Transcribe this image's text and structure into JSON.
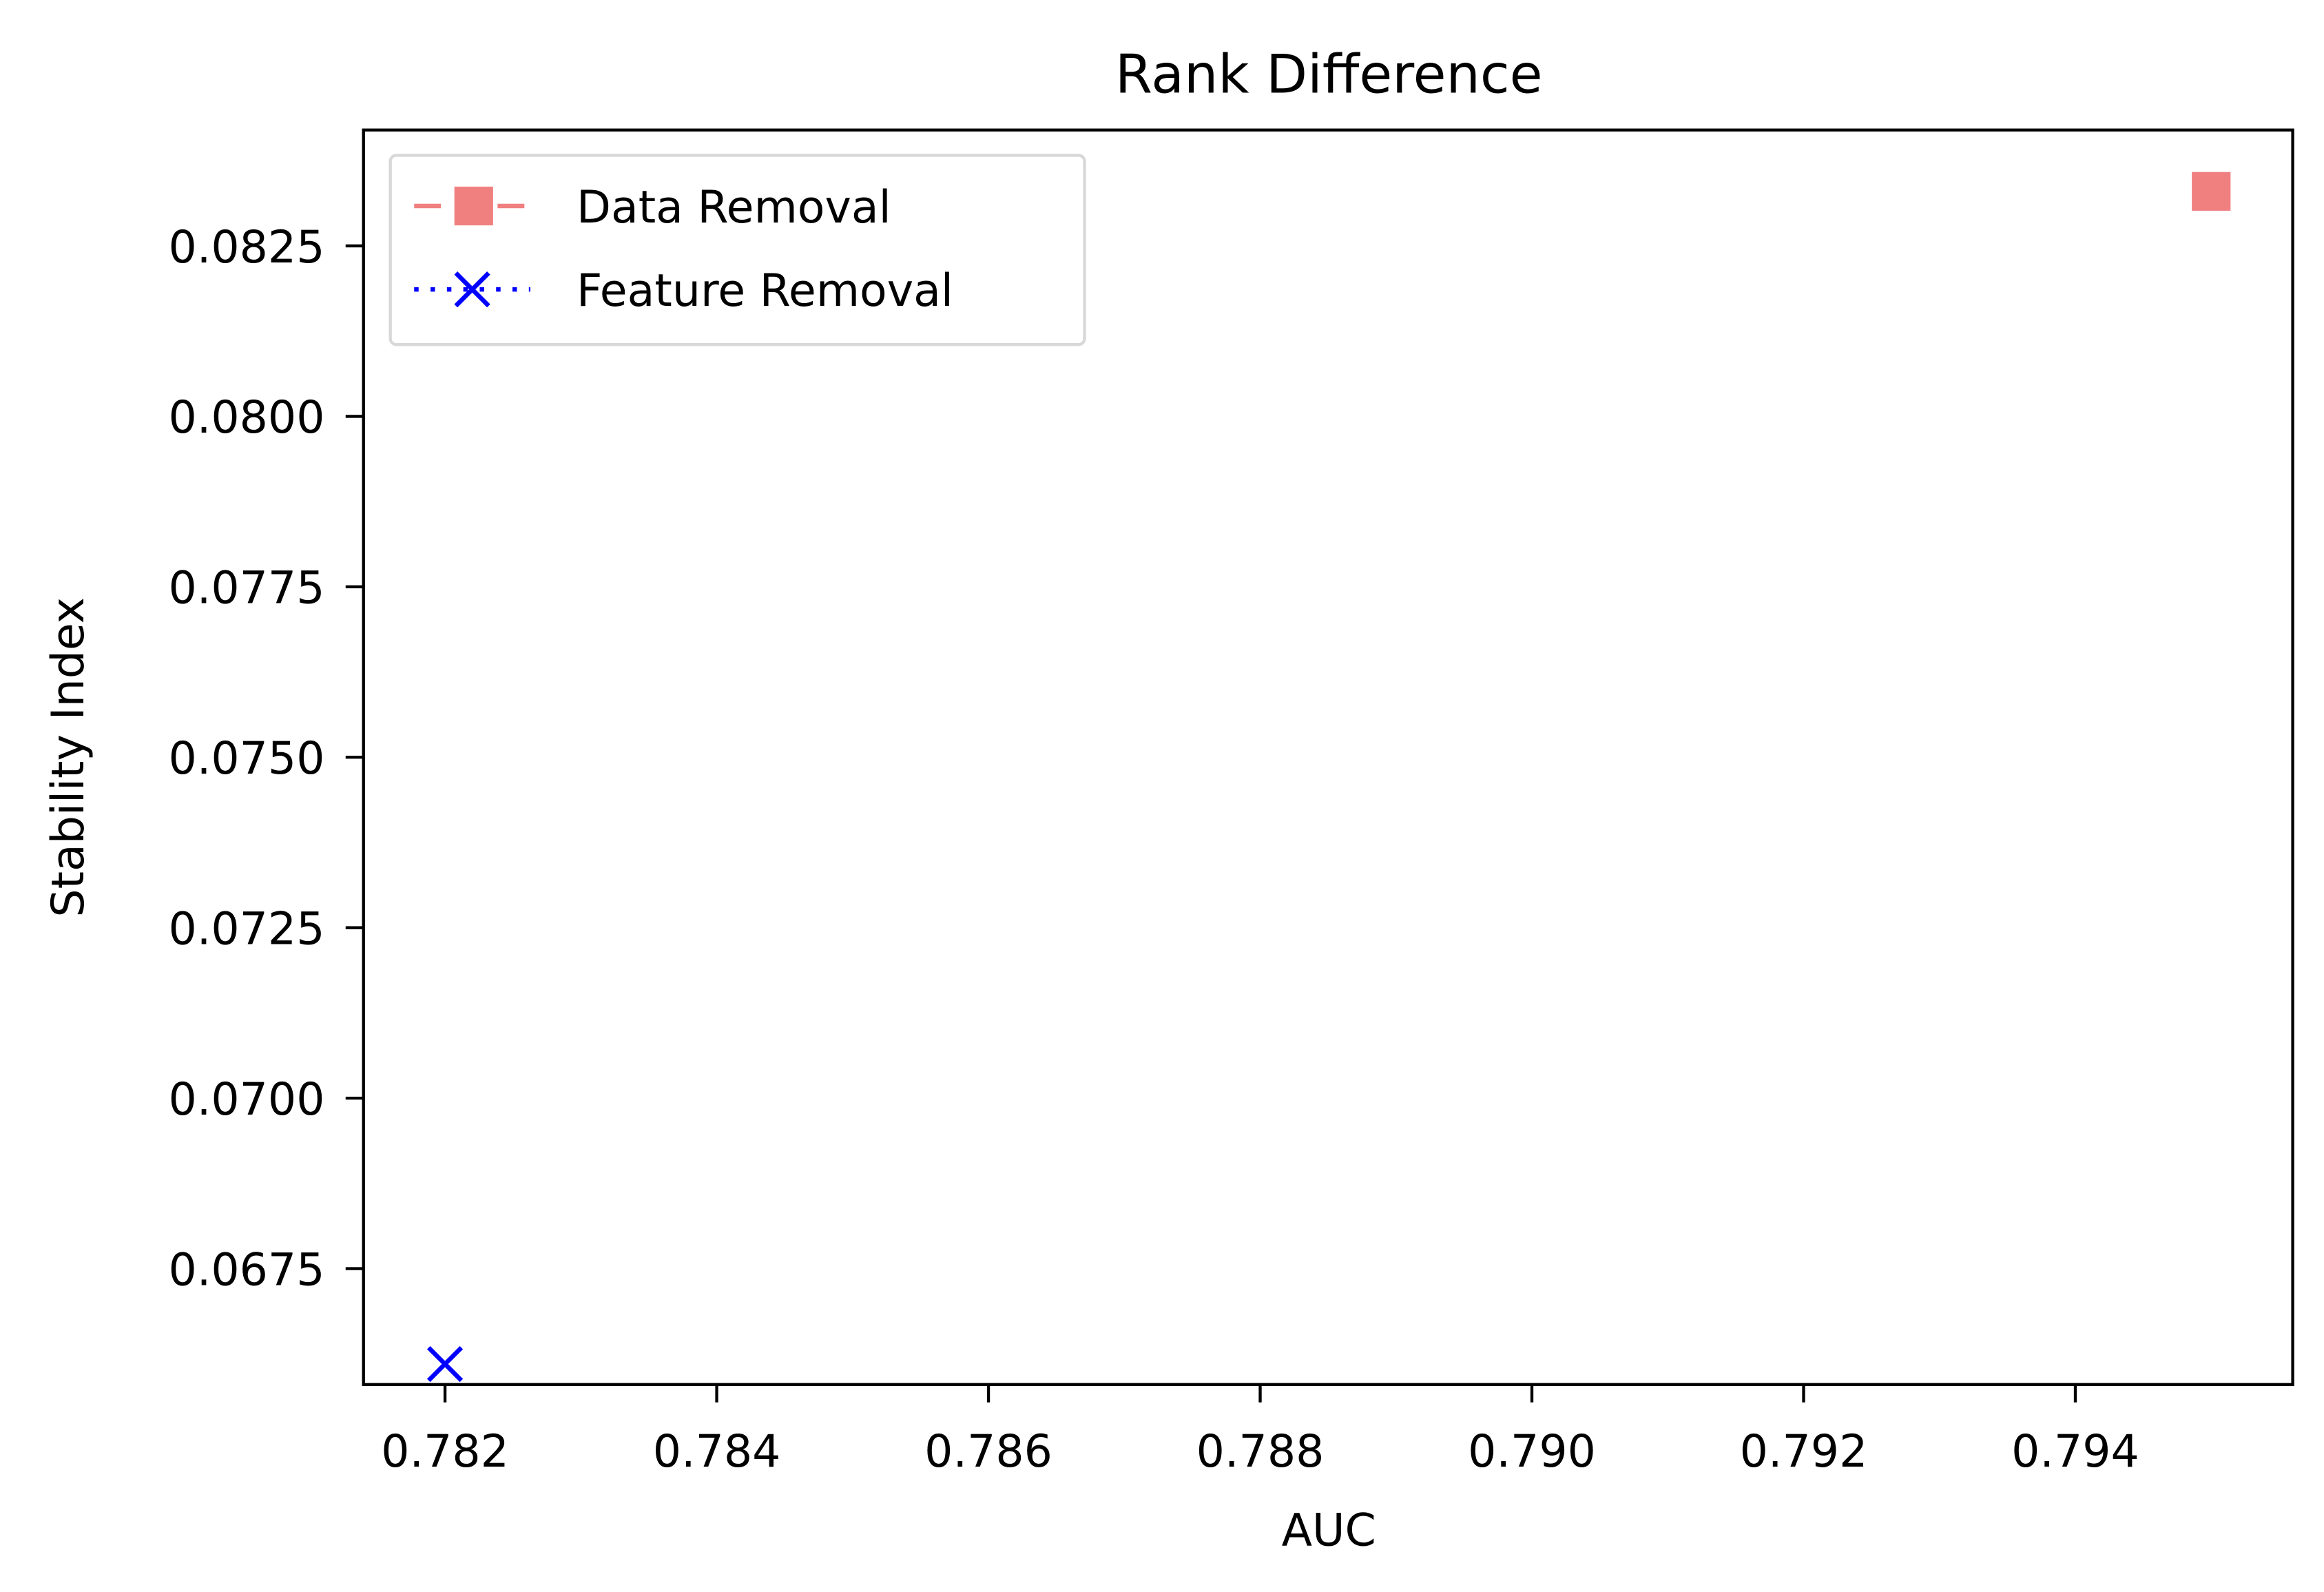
{
  "chart_data": {
    "type": "scatter",
    "title": "Rank Difference",
    "xlabel": "AUC",
    "ylabel": "Stability Index",
    "xlim": [
      0.7814,
      0.7956
    ],
    "ylim": [
      0.0658,
      0.0842
    ],
    "x_ticks": [
      "0.782",
      "0.784",
      "0.786",
      "0.788",
      "0.790",
      "0.792",
      "0.794"
    ],
    "y_ticks": [
      "0.0675",
      "0.0700",
      "0.0725",
      "0.0750",
      "0.0775",
      "0.0800",
      "0.0825"
    ],
    "grid": false,
    "legend_position": "upper-left",
    "series": [
      {
        "name": "Data Removal",
        "x": [
          0.795
        ],
        "y": [
          0.0833
        ],
        "color": "#f08080",
        "marker": "square",
        "line_style": "dashed"
      },
      {
        "name": "Feature Removal",
        "x": [
          0.782
        ],
        "y": [
          0.0661
        ],
        "color": "#0000ff",
        "marker": "x",
        "line_style": "dotted"
      }
    ]
  }
}
